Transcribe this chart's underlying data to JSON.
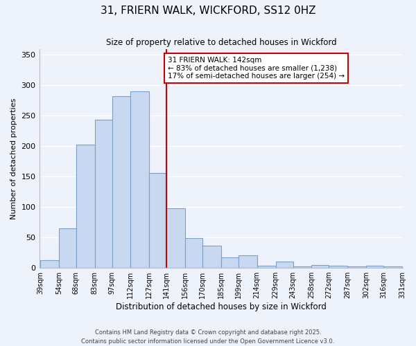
{
  "title": "31, FRIERN WALK, WICKFORD, SS12 0HZ",
  "subtitle": "Size of property relative to detached houses in Wickford",
  "xlabel": "Distribution of detached houses by size in Wickford",
  "ylabel": "Number of detached properties",
  "bin_edges": [
    39,
    54,
    68,
    83,
    97,
    112,
    127,
    141,
    156,
    170,
    185,
    199,
    214,
    229,
    243,
    258,
    272,
    287,
    302,
    316,
    331
  ],
  "bin_labels": [
    "39sqm",
    "54sqm",
    "68sqm",
    "83sqm",
    "97sqm",
    "112sqm",
    "127sqm",
    "141sqm",
    "156sqm",
    "170sqm",
    "185sqm",
    "199sqm",
    "214sqm",
    "229sqm",
    "243sqm",
    "258sqm",
    "272sqm",
    "287sqm",
    "302sqm",
    "316sqm",
    "331sqm"
  ],
  "bar_values": [
    13,
    65,
    202,
    243,
    282,
    290,
    156,
    98,
    49,
    36,
    17,
    20,
    4,
    10,
    2,
    5,
    4,
    2,
    3,
    2
  ],
  "bar_color": "#c8d8f0",
  "bar_edge_color": "#7aa0c8",
  "vline_label_index": 7,
  "vline_color": "#cc0000",
  "ylim": [
    0,
    360
  ],
  "yticks": [
    0,
    50,
    100,
    150,
    200,
    250,
    300,
    350
  ],
  "annotation_text": "31 FRIERN WALK: 142sqm\n← 83% of detached houses are smaller (1,238)\n17% of semi-detached houses are larger (254) →",
  "annotation_box_color": "#ffffff",
  "annotation_box_edge": "#cc0000",
  "footer_line1": "Contains HM Land Registry data © Crown copyright and database right 2025.",
  "footer_line2": "Contains public sector information licensed under the Open Government Licence v3.0.",
  "background_color": "#eef2fa"
}
